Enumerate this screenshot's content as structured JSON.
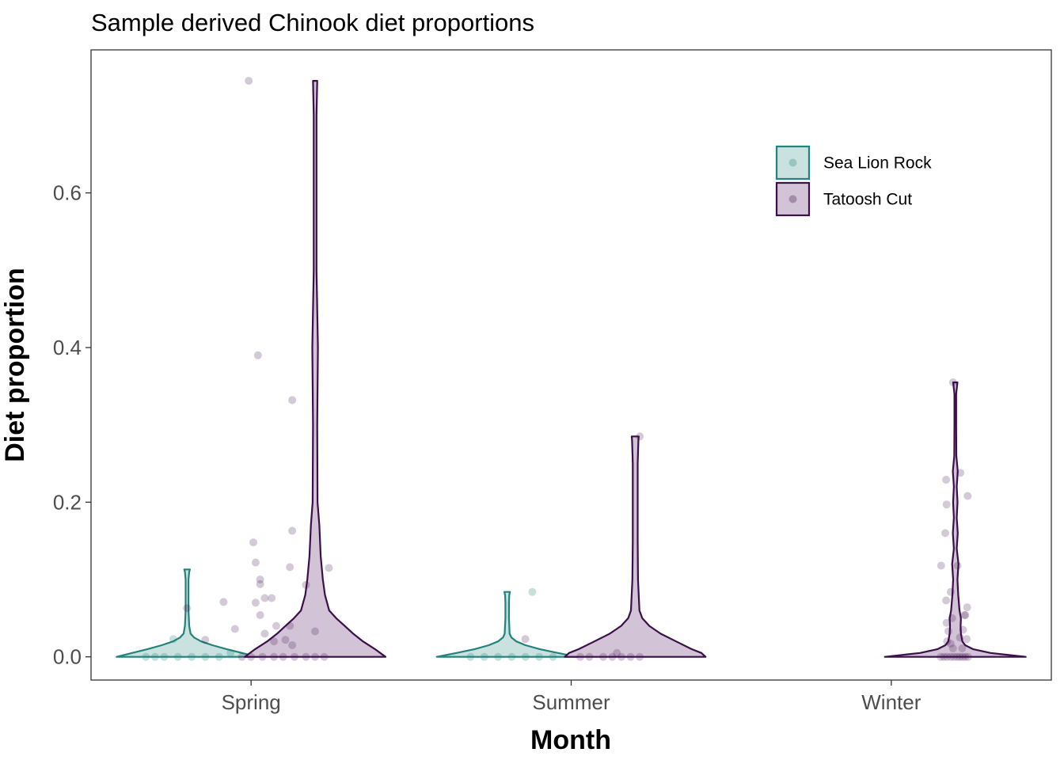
{
  "chart_data": {
    "type": "violin",
    "title": "Sample derived Chinook diet proportions",
    "xlabel": "Month",
    "ylabel": "Diet proportion",
    "categories": [
      "Spring",
      "Summer",
      "Winter"
    ],
    "y_ticks": [
      "0.0",
      "0.2",
      "0.4",
      "0.6"
    ],
    "ylim": [
      -0.03,
      0.785
    ],
    "grid": false,
    "legend_position": "top-right",
    "series": [
      {
        "name": "Sea Lion Rock",
        "color": "#21837b",
        "fill": "#c9e2df",
        "violins": [
          {
            "category": "Spring",
            "max": 0.113,
            "profile": [
              [
                0,
                1.0
              ],
              [
                0.005,
                0.78
              ],
              [
                0.01,
                0.56
              ],
              [
                0.015,
                0.36
              ],
              [
                0.02,
                0.2
              ],
              [
                0.025,
                0.1
              ],
              [
                0.03,
                0.05
              ],
              [
                0.04,
                0.03
              ],
              [
                0.06,
                0.02
              ],
              [
                0.08,
                0.02
              ],
              [
                0.1,
                0.02
              ],
              [
                0.11,
                0.03
              ],
              [
                0.113,
                0.04
              ]
            ],
            "points": [
              [
                -0.9,
                0
              ],
              [
                -0.7,
                0
              ],
              [
                -0.5,
                0
              ],
              [
                -0.2,
                0
              ],
              [
                0.1,
                0
              ],
              [
                0.4,
                0
              ],
              [
                0.7,
                0
              ],
              [
                0.95,
                0.005
              ],
              [
                -0.3,
                0.023
              ]
            ]
          },
          {
            "category": "Summer",
            "max": 0.084,
            "profile": [
              [
                0,
                1.0
              ],
              [
                0.005,
                0.72
              ],
              [
                0.01,
                0.46
              ],
              [
                0.015,
                0.26
              ],
              [
                0.02,
                0.13
              ],
              [
                0.025,
                0.06
              ],
              [
                0.03,
                0.035
              ],
              [
                0.05,
                0.025
              ],
              [
                0.07,
                0.025
              ],
              [
                0.08,
                0.03
              ],
              [
                0.084,
                0.04
              ]
            ],
            "points": [
              [
                -0.8,
                0
              ],
              [
                -0.5,
                0
              ],
              [
                -0.2,
                0
              ],
              [
                0.1,
                0
              ],
              [
                0.4,
                0
              ],
              [
                0.7,
                0
              ],
              [
                1.0,
                0
              ],
              [
                0.55,
                0.084
              ]
            ]
          }
        ]
      },
      {
        "name": "Tatoosh Cut",
        "color": "#3b0f4a",
        "fill": "#d2c3d6",
        "violins": [
          {
            "category": "Spring",
            "max": 0.745,
            "profile": [
              [
                0,
                1.0
              ],
              [
                0.01,
                0.85
              ],
              [
                0.02,
                0.68
              ],
              [
                0.03,
                0.54
              ],
              [
                0.04,
                0.42
              ],
              [
                0.05,
                0.3
              ],
              [
                0.06,
                0.2
              ],
              [
                0.08,
                0.14
              ],
              [
                0.1,
                0.11
              ],
              [
                0.13,
                0.08
              ],
              [
                0.17,
                0.06
              ],
              [
                0.2,
                0.035
              ],
              [
                0.3,
                0.03
              ],
              [
                0.4,
                0.04
              ],
              [
                0.5,
                0.02
              ],
              [
                0.6,
                0.02
              ],
              [
                0.7,
                0.02
              ],
              [
                0.745,
                0.03
              ]
            ],
            "points": [
              [
                -1.45,
                0.745
              ],
              [
                -1.25,
                0.39
              ],
              [
                -0.5,
                0.332
              ],
              [
                -0.5,
                0.163
              ],
              [
                -0.55,
                0.116
              ],
              [
                -1.35,
                0.148
              ],
              [
                -1.3,
                0.122
              ],
              [
                -1.2,
                0.1
              ],
              [
                -1.2,
                0.094
              ],
              [
                -1.1,
                0.076
              ],
              [
                -0.95,
                0.076
              ],
              [
                -1.3,
                0.07
              ],
              [
                -2.0,
                0.071
              ],
              [
                -2.8,
                0.063
              ],
              [
                -1.2,
                0.054
              ],
              [
                -0.85,
                0.04
              ],
              [
                -0.55,
                0.04
              ],
              [
                -1.75,
                0.036
              ],
              [
                -1.1,
                0.03
              ],
              [
                -0.65,
                0.022
              ],
              [
                -2.4,
                0.022
              ],
              [
                -0.5,
                0.015
              ],
              [
                -0.9,
                0.02
              ],
              [
                -0.2,
                0.093
              ],
              [
                0.0,
                0.033
              ],
              [
                0.3,
                0.115
              ],
              [
                -1.6,
                0
              ],
              [
                -1.4,
                0
              ],
              [
                -1.15,
                0
              ],
              [
                -0.9,
                0
              ],
              [
                -0.7,
                0
              ],
              [
                -0.45,
                0
              ],
              [
                -0.2,
                0
              ],
              [
                0.0,
                0
              ],
              [
                0.2,
                0
              ]
            ]
          },
          {
            "category": "Summer",
            "max": 0.285,
            "profile": [
              [
                0,
                1.0
              ],
              [
                0.005,
                0.94
              ],
              [
                0.01,
                0.8
              ],
              [
                0.02,
                0.58
              ],
              [
                0.03,
                0.36
              ],
              [
                0.04,
                0.2
              ],
              [
                0.05,
                0.1
              ],
              [
                0.06,
                0.06
              ],
              [
                0.1,
                0.04
              ],
              [
                0.15,
                0.035
              ],
              [
                0.2,
                0.035
              ],
              [
                0.25,
                0.035
              ],
              [
                0.28,
                0.045
              ],
              [
                0.285,
                0.05
              ]
            ],
            "points": [
              [
                0.1,
                0.285
              ],
              [
                -2.4,
                0.023
              ],
              [
                -0.7,
                0
              ],
              [
                -0.5,
                0
              ],
              [
                -0.3,
                0
              ],
              [
                -0.1,
                0
              ],
              [
                0.1,
                0
              ],
              [
                -1.0,
                0
              ],
              [
                -1.2,
                0
              ],
              [
                -0.4,
                0.005
              ]
            ]
          },
          {
            "category": "Winter",
            "max": 0.355,
            "profile": [
              [
                0,
                1.0
              ],
              [
                0.005,
                0.5
              ],
              [
                0.01,
                0.25
              ],
              [
                0.015,
                0.14
              ],
              [
                0.02,
                0.1
              ],
              [
                0.03,
                0.08
              ],
              [
                0.04,
                0.075
              ],
              [
                0.05,
                0.08
              ],
              [
                0.06,
                0.06
              ],
              [
                0.08,
                0.042
              ],
              [
                0.1,
                0.03
              ],
              [
                0.12,
                0.045
              ],
              [
                0.14,
                0.02
              ],
              [
                0.16,
                0.035
              ],
              [
                0.18,
                0.02
              ],
              [
                0.2,
                0.032
              ],
              [
                0.22,
                0.02
              ],
              [
                0.24,
                0.035
              ],
              [
                0.26,
                0.015
              ],
              [
                0.3,
                0.012
              ],
              [
                0.34,
                0.012
              ],
              [
                0.355,
                0.03
              ]
            ],
            "points": [
              [
                -0.05,
                0.355
              ],
              [
                0.11,
                0.238
              ],
              [
                0.27,
                0.208
              ],
              [
                -0.2,
                0.229
              ],
              [
                -0.19,
                0.197
              ],
              [
                -0.22,
                0.16
              ],
              [
                -0.31,
                0.118
              ],
              [
                0.05,
                0.118
              ],
              [
                -0.2,
                0.073
              ],
              [
                -0.1,
                0.084
              ],
              [
                -0.07,
                0.05
              ],
              [
                -0.19,
                0.044
              ],
              [
                -0.15,
                0.033
              ],
              [
                0.2,
                0.054
              ],
              [
                0.22,
                0.054
              ],
              [
                0.26,
                0.064
              ],
              [
                0.17,
                0.035
              ],
              [
                0.1,
                0.025
              ],
              [
                0.25,
                0.023
              ],
              [
                -0.1,
                0.017
              ],
              [
                -0.05,
                0.011
              ],
              [
                0.15,
                0.011
              ],
              [
                -0.18,
                0.02
              ],
              [
                -0.32,
                0
              ],
              [
                -0.25,
                0
              ],
              [
                -0.18,
                0
              ],
              [
                -0.1,
                0
              ],
              [
                -0.03,
                0
              ],
              [
                0.04,
                0
              ],
              [
                0.1,
                0
              ],
              [
                0.16,
                0
              ],
              [
                0.22,
                0
              ],
              [
                0.28,
                0
              ]
            ]
          }
        ]
      }
    ]
  }
}
